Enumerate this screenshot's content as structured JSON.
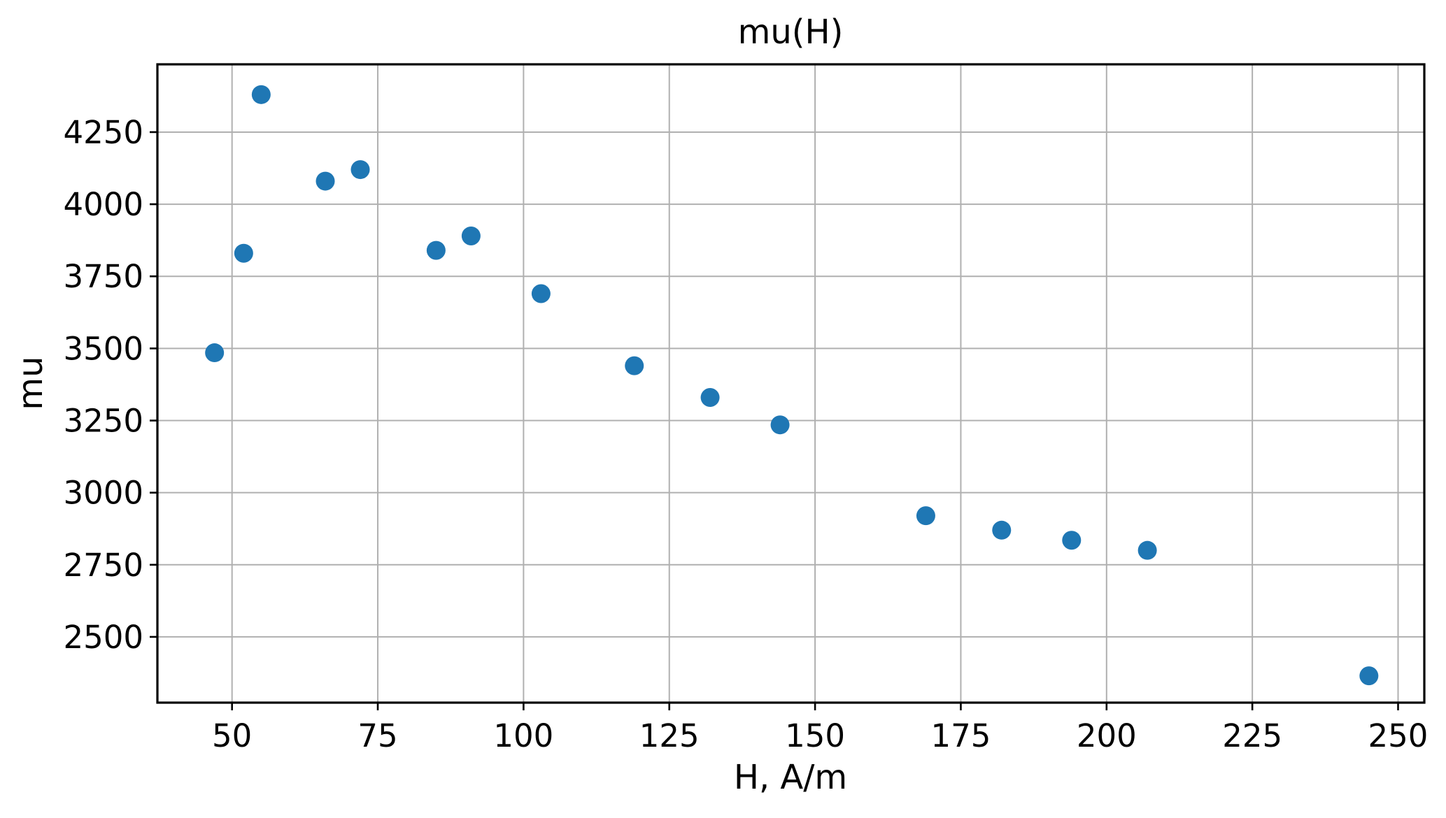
{
  "chart_data": {
    "type": "scatter",
    "title": "mu(H)",
    "xlabel": "H, A/m",
    "ylabel": "mu",
    "points": [
      {
        "x": 47,
        "y": 3485
      },
      {
        "x": 52,
        "y": 3830
      },
      {
        "x": 55,
        "y": 4380
      },
      {
        "x": 66,
        "y": 4080
      },
      {
        "x": 72,
        "y": 4120
      },
      {
        "x": 85,
        "y": 3840
      },
      {
        "x": 91,
        "y": 3890
      },
      {
        "x": 103,
        "y": 3690
      },
      {
        "x": 119,
        "y": 3440
      },
      {
        "x": 132,
        "y": 3330
      },
      {
        "x": 144,
        "y": 3235
      },
      {
        "x": 169,
        "y": 2920
      },
      {
        "x": 182,
        "y": 2870
      },
      {
        "x": 194,
        "y": 2835
      },
      {
        "x": 207,
        "y": 2800
      },
      {
        "x": 245,
        "y": 2365
      }
    ],
    "xticks": [
      50,
      75,
      100,
      125,
      150,
      175,
      200,
      225,
      250
    ],
    "yticks": [
      2500,
      2750,
      3000,
      3250,
      3500,
      3750,
      4000,
      4250
    ],
    "xlim": [
      37.2,
      254.5
    ],
    "ylim": [
      2272,
      4485
    ],
    "grid": true,
    "legend": null,
    "colors": {
      "marker": "#1f77b4",
      "grid": "#b0b0b0",
      "spine": "#000000",
      "text": "#000000",
      "background": "#ffffff"
    }
  }
}
